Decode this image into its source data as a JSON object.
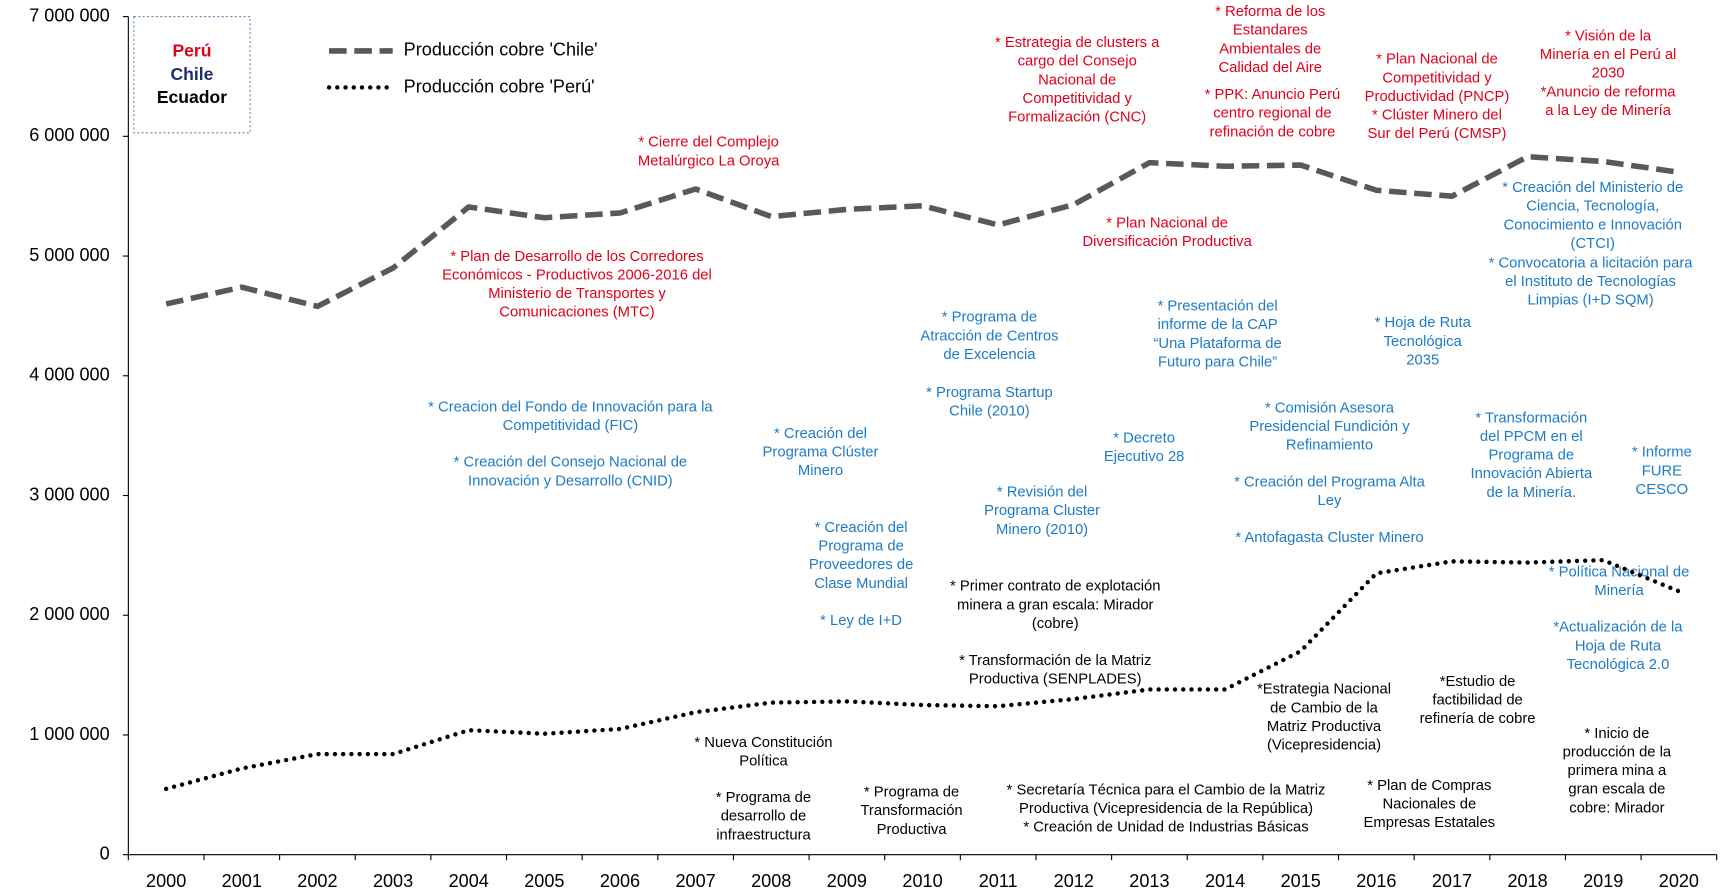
{
  "chart_data": {
    "type": "line",
    "categories": [
      "2000",
      "2001",
      "2002",
      "2003",
      "2004",
      "2005",
      "2006",
      "2007",
      "2008",
      "2009",
      "2010",
      "2011",
      "2012",
      "2013",
      "2014",
      "2015",
      "2016",
      "2017",
      "2018",
      "2019",
      "2020"
    ],
    "series": [
      {
        "name": "Producción cobre 'Chile'",
        "color": "#595959",
        "style": "dashed",
        "values": [
          4600000,
          4740000,
          4580000,
          4900000,
          5410000,
          5320000,
          5360000,
          5560000,
          5330000,
          5390000,
          5420000,
          5260000,
          5430000,
          5780000,
          5750000,
          5760000,
          5550000,
          5500000,
          5830000,
          5790000,
          5700000
        ]
      },
      {
        "name": "Producción cobre 'Perú'",
        "color": "#000000",
        "style": "dotted",
        "values": [
          550000,
          720000,
          840000,
          840000,
          1040000,
          1010000,
          1050000,
          1190000,
          1270000,
          1280000,
          1250000,
          1240000,
          1300000,
          1380000,
          1380000,
          1700000,
          2350000,
          2450000,
          2440000,
          2460000,
          2200000
        ]
      }
    ],
    "ylim": [
      0,
      7000000
    ],
    "yticks": [
      {
        "value": 0,
        "label": "0"
      },
      {
        "value": 1000000,
        "label": "1 000 000"
      },
      {
        "value": 2000000,
        "label": "2 000 000"
      },
      {
        "value": 3000000,
        "label": "3 000 000"
      },
      {
        "value": 4000000,
        "label": "4 000 000"
      },
      {
        "value": 5000000,
        "label": "5 000 000"
      },
      {
        "value": 6000000,
        "label": "6 000 000"
      },
      {
        "value": 7000000,
        "label": "7 000 000"
      }
    ],
    "grid": false,
    "legend": "top-left",
    "color_key": [
      {
        "label": "Perú",
        "color": "#e0001b"
      },
      {
        "label": "Chile",
        "color": "#1f2d6b"
      },
      {
        "label": "Ecuador",
        "color": "#000000"
      }
    ],
    "annotations": [
      {
        "color": "#e0001b",
        "lines": [
          "* Cierre del Complejo",
          "Metalúrgico La Oroya"
        ]
      },
      {
        "color": "#e0001b",
        "lines": [
          "* Plan de Desarrollo de los Corredores",
          "Económicos - Productivos 2006-2016 del",
          "Ministerio de Transportes y",
          "Comunicaciones (MTC)"
        ]
      },
      {
        "color": "#e0001b",
        "lines": [
          "* Estrategia de clusters a",
          "cargo del Consejo",
          "Nacional de",
          "Competitividad y",
          "Formalización (CNC)"
        ]
      },
      {
        "color": "#e0001b",
        "lines": [
          "* Plan Nacional de",
          "Diversificación Productiva"
        ]
      },
      {
        "color": "#e0001b",
        "lines": [
          "* Reforma de los",
          "Estandares",
          "Ambientales de",
          "Calidad del Aire"
        ]
      },
      {
        "color": "#e0001b",
        "lines": [
          "* PPK: Anuncio Perú",
          "centro regional de",
          "refinación de cobre"
        ]
      },
      {
        "color": "#e0001b",
        "lines": [
          "* Plan Nacional de",
          "Competitividad y",
          "Productividad (PNCP)",
          "* Clúster Minero del",
          "Sur del Perú (CMSP)"
        ]
      },
      {
        "color": "#e0001b",
        "lines": [
          "* Visión de la",
          "Minería en el Perú al",
          "2030",
          "*Anuncio de reforma",
          "a la Ley de Minería"
        ]
      },
      {
        "color": "#1e7bc4",
        "lines": [
          "* Creacion del Fondo de Innovación para la",
          "Competitividad (FIC)"
        ]
      },
      {
        "color": "#1e7bc4",
        "lines": [
          "* Creación del Consejo Nacional de",
          "Innovación y Desarrollo (CNID)"
        ]
      },
      {
        "color": "#1e7bc4",
        "lines": [
          "* Creación del",
          "Programa Clúster",
          "Minero"
        ]
      },
      {
        "color": "#1e7bc4",
        "lines": [
          "* Programa de",
          "Atracción de Centros",
          "de Excelencia"
        ]
      },
      {
        "color": "#1e7bc4",
        "lines": [
          "* Programa Startup",
          "Chile (2010)"
        ]
      },
      {
        "color": "#1e7bc4",
        "lines": [
          "* Decreto",
          "Ejecutivo 28"
        ]
      },
      {
        "color": "#1e7bc4",
        "lines": [
          "* Revisión del",
          "Programa Cluster",
          "Minero (2010)"
        ]
      },
      {
        "color": "#1e7bc4",
        "lines": [
          "* Creación del",
          "Programa de",
          "Proveedores de",
          "Clase Mundial"
        ]
      },
      {
        "color": "#1e7bc4",
        "lines": [
          "* Ley de I+D"
        ]
      },
      {
        "color": "#1e7bc4",
        "lines": [
          "* Presentación del",
          "informe de la CAP",
          "“Una Plataforma de",
          "Futuro para Chile”"
        ]
      },
      {
        "color": "#1e7bc4",
        "lines": [
          "* Comisión Asesora",
          "Presidencial Fundición y",
          "Refinamiento"
        ]
      },
      {
        "color": "#1e7bc4",
        "lines": [
          "* Creación del Programa Alta",
          "Ley"
        ]
      },
      {
        "color": "#1e7bc4",
        "lines": [
          "* Antofagasta Cluster Minero"
        ]
      },
      {
        "color": "#1e7bc4",
        "lines": [
          "* Hoja de Ruta",
          "Tecnológica",
          "2035"
        ]
      },
      {
        "color": "#1e7bc4",
        "lines": [
          "* Creación del Ministerio de",
          "Ciencia, Tecnología,",
          "Conocimiento e Innovación",
          "(CTCI)"
        ]
      },
      {
        "color": "#1e7bc4",
        "lines": [
          "* Convocatoria a licitación para",
          "el Instituto de Tecnologías",
          "Limpias (I+D SQM)"
        ]
      },
      {
        "color": "#1e7bc4",
        "lines": [
          "* Transformación",
          "del PPCM en el",
          "Programa de",
          "Innovación Abierta",
          "de la Minería."
        ]
      },
      {
        "color": "#1e7bc4",
        "lines": [
          "* Informe",
          "FURE",
          "CESCO"
        ]
      },
      {
        "color": "#1e7bc4",
        "lines": [
          "* Política Nacional de",
          "Minería"
        ]
      },
      {
        "color": "#1e7bc4",
        "lines": [
          "*Actualización de la",
          "Hoja de Ruta",
          "Tecnológica 2.0"
        ]
      },
      {
        "color": "#000000",
        "lines": [
          "* Primer contrato de explotación",
          "minera a gran escala: Mirador",
          "(cobre)"
        ]
      },
      {
        "color": "#000000",
        "lines": [
          "* Transformación de la Matriz",
          "Productiva (SENPLADES)"
        ]
      },
      {
        "color": "#000000",
        "lines": [
          "* Nueva Constitución",
          "Política"
        ]
      },
      {
        "color": "#000000",
        "lines": [
          "* Programa de",
          "desarrollo de",
          "infraestructura"
        ]
      },
      {
        "color": "#000000",
        "lines": [
          "* Programa de",
          "Transformación",
          "Productiva"
        ]
      },
      {
        "color": "#000000",
        "lines": [
          "* Secretaría Técnica para el Cambio de la Matriz",
          "Productiva (Vicepresidencia de la República)",
          "* Creación de Unidad de Industrias Básicas"
        ]
      },
      {
        "color": "#000000",
        "lines": [
          "*Estrategia Nacional",
          "de Cambio de la",
          "Matriz Productiva",
          "(Vicepresidencia)"
        ]
      },
      {
        "color": "#000000",
        "lines": [
          "*Estudio de",
          "factibilidad de",
          "refinería de cobre"
        ]
      },
      {
        "color": "#000000",
        "lines": [
          "* Plan de Compras",
          "Nacionales de",
          "Empresas Estatales"
        ]
      },
      {
        "color": "#000000",
        "lines": [
          "* Inicio de",
          "producción de la",
          "primera mina a",
          "gran escala de",
          "cobre: Mirador"
        ]
      }
    ]
  }
}
